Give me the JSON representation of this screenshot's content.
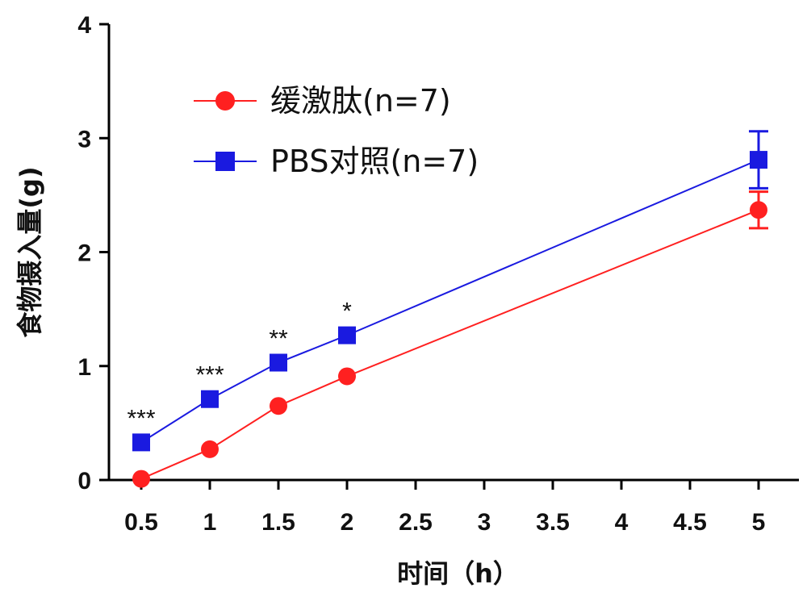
{
  "chart_data": {
    "type": "line",
    "xlabel": "时间（h）",
    "ylabel": "食物摄入量(g)",
    "xlim": [
      0.5,
      5
    ],
    "ylim": [
      0,
      4
    ],
    "x_ticks": [
      "0.5",
      "1",
      "1.5",
      "2",
      "2.5",
      "3",
      "3.5",
      "4",
      "4.5",
      "5"
    ],
    "y_ticks": [
      "0",
      "1",
      "2",
      "3",
      "4"
    ],
    "x": [
      0.5,
      1,
      1.5,
      2,
      5
    ],
    "series": [
      {
        "name": "缓激肽(n=7)",
        "color": "#ff2020",
        "marker": "circle",
        "values": [
          0.01,
          0.27,
          0.65,
          0.91,
          2.37
        ],
        "error": [
          0,
          0,
          0,
          0,
          0.16
        ]
      },
      {
        "name": "PBS对照(n=7)",
        "color": "#1a1ae0",
        "marker": "square",
        "values": [
          0.33,
          0.71,
          1.03,
          1.27,
          2.81
        ],
        "error": [
          0,
          0,
          0,
          0,
          0.25
        ]
      }
    ],
    "significance": [
      {
        "x": 0.5,
        "label": "***"
      },
      {
        "x": 1,
        "label": "***"
      },
      {
        "x": 1.5,
        "label": "**"
      },
      {
        "x": 2,
        "label": "*"
      }
    ],
    "legend_position": "top-left",
    "grid": false
  }
}
